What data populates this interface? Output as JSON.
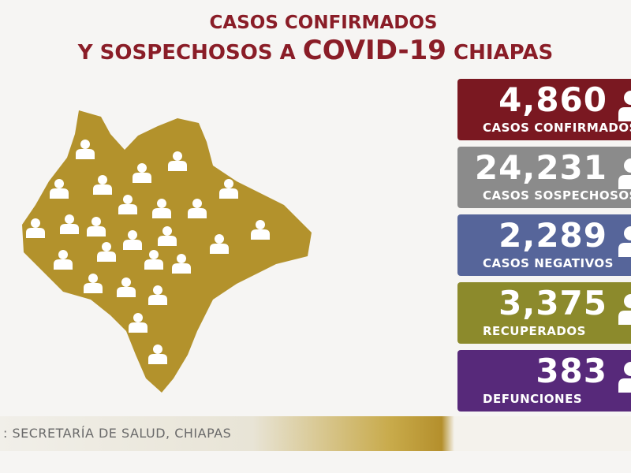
{
  "header": {
    "line1": "CASOS CONFIRMADOS",
    "line2_parts": [
      "Y SOSPECHOSOS A ",
      "COVID-19",
      " CHIAPAS"
    ]
  },
  "cards": [
    {
      "number": "4,860",
      "label": "CASOS CONFIRMADOS"
    },
    {
      "number": "24,231",
      "label": "CASOS SOSPECHOSOS"
    },
    {
      "number": "2,289",
      "label": "CASOS NEGATIVOS"
    },
    {
      "number": "3,375",
      "label": "RECUPERADOS"
    },
    {
      "number": "383",
      "label": "DEFUNCIONES"
    }
  ],
  "footer": {
    "source": ": SECRETARÍA DE SALUD, CHIAPAS"
  }
}
